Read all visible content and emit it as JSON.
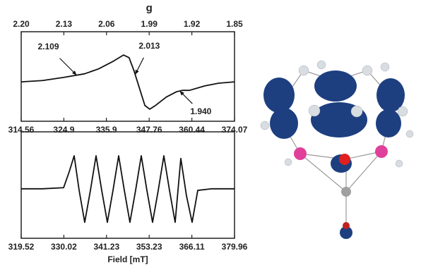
{
  "chart_data": [
    {
      "type": "line",
      "xlabel": "g",
      "xaxis": "top",
      "xlim": [
        2.2,
        1.85
      ],
      "xticks": [
        {
          "value": 2.2,
          "label": "2.20"
        },
        2.13,
        2.06,
        1.99,
        1.92,
        1.85
      ],
      "x2lim": [
        314.56,
        374.07
      ],
      "x2scale": "reciprocal",
      "x2ticks": [
        314.56,
        324.9,
        335.9,
        347.76,
        360.44,
        374.07
      ],
      "ylim": [
        -1,
        1
      ],
      "color": "#111111",
      "x": [
        2.2,
        2.165,
        2.13,
        2.096,
        2.073,
        2.049,
        2.032,
        2.023,
        2.015,
        2.006,
        1.997,
        1.989,
        1.98,
        1.962,
        1.945,
        1.936,
        1.924,
        1.899,
        1.876,
        1.85
      ],
      "values": [
        -0.12,
        -0.09,
        -0.02,
        0.06,
        0.17,
        0.34,
        0.48,
        0.42,
        0.13,
        -0.26,
        -0.65,
        -0.73,
        -0.65,
        -0.46,
        -0.34,
        -0.31,
        -0.31,
        -0.21,
        -0.15,
        -0.12
      ],
      "annotations": [
        {
          "text": "2.109",
          "x": 2.109
        },
        {
          "text": "2.013",
          "x": 2.013
        },
        {
          "text": "1.940",
          "x": 1.94
        }
      ]
    },
    {
      "type": "line",
      "xlabel": "Field [mT]",
      "xaxis": "bottom",
      "xlim": [
        319.52,
        379.96
      ],
      "xscale": "reciprocal",
      "xticks": [
        319.52,
        330.02,
        341.23,
        353.23,
        366.11,
        379.96
      ],
      "ylim": [
        -1,
        1
      ],
      "color": "#111111",
      "x": [
        319.52,
        324.65,
        329.95,
        331.39,
        332.66,
        333.95,
        335.41,
        336.91,
        338.41,
        339.93,
        341.46,
        343.0,
        344.56,
        346.14,
        347.71,
        349.32,
        350.94,
        352.57,
        354.22,
        355.89,
        357.56,
        359.25,
        360.96,
        362.69,
        364.43,
        366.19,
        367.97,
        372.48,
        379.96
      ],
      "values": [
        -0.07,
        -0.07,
        -0.05,
        0.25,
        0.55,
        -0.1,
        -0.7,
        -0.1,
        0.55,
        -0.1,
        -0.7,
        -0.1,
        0.55,
        -0.1,
        -0.7,
        -0.1,
        0.55,
        -0.1,
        -0.7,
        -0.1,
        0.55,
        -0.1,
        -0.7,
        0.5,
        -0.2,
        -0.7,
        -0.1,
        -0.07,
        -0.07
      ]
    }
  ]
}
